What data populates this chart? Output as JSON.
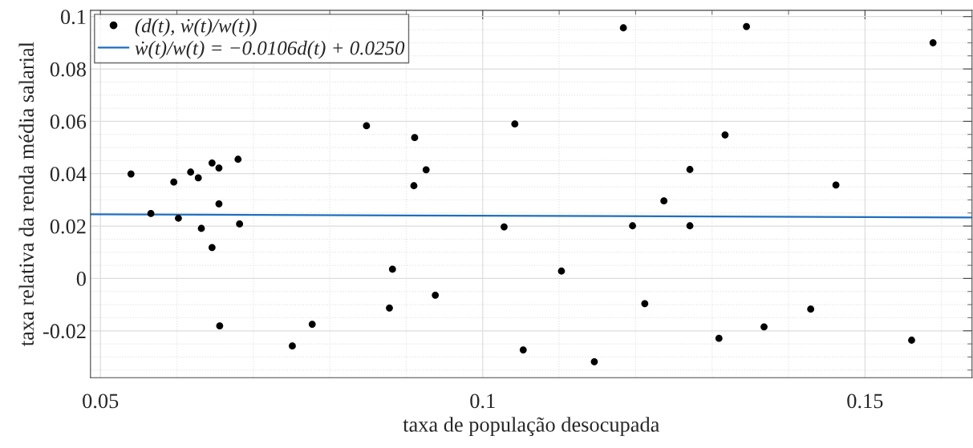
{
  "chart_data": {
    "type": "scatter",
    "xlabel": "taxa de população desocupada",
    "ylabel": "taxa relativa da renda média salarial",
    "xlim": [
      0.0487,
      0.164
    ],
    "ylim": [
      -0.0379,
      0.1024
    ],
    "xticks": [
      0.05,
      0.1,
      0.15
    ],
    "yticks": [
      -0.02,
      0,
      0.02,
      0.04,
      0.06,
      0.08,
      0.1
    ],
    "grid": true,
    "legend": "top left",
    "series": [
      {
        "name": "(d(t), ẇ(t)/w(t))",
        "marker": "circle",
        "color": "#000000",
        "x": [
          0.054,
          0.0566,
          0.0596,
          0.0602,
          0.0618,
          0.0628,
          0.0632,
          0.0646,
          0.0646,
          0.0655,
          0.0655,
          0.0656,
          0.068,
          0.0682,
          0.0751,
          0.0777,
          0.0848,
          0.0911,
          0.0926,
          0.091,
          0.0882,
          0.0878,
          0.0938,
          0.1042,
          0.1028,
          0.1053,
          0.1103,
          0.1146,
          0.1184,
          0.1196,
          0.1212,
          0.1345,
          0.1317,
          0.1271,
          0.1237,
          0.1271,
          0.1309,
          0.1368,
          0.1429,
          0.1462,
          0.1561,
          0.1589
        ],
        "values": [
          0.0399,
          0.0248,
          0.0368,
          0.023,
          0.0406,
          0.0384,
          0.0191,
          0.0441,
          0.0118,
          0.0422,
          0.0285,
          -0.0181,
          0.0455,
          0.0208,
          -0.0258,
          -0.0175,
          0.0583,
          0.0538,
          0.0415,
          0.0354,
          0.0035,
          -0.0113,
          -0.0064,
          0.059,
          0.0197,
          -0.0273,
          0.0028,
          -0.0318,
          0.0957,
          0.0201,
          -0.0096,
          0.0962,
          0.0548,
          0.0416,
          0.0296,
          0.0201,
          -0.0229,
          -0.0185,
          -0.0117,
          0.0357,
          -0.0236,
          0.09
        ]
      },
      {
        "name": "ẇ(t)/w(t) = −0.0106d(t) + 0.0250",
        "type": "line",
        "color": "#1f6fbf",
        "x": [
          0.0487,
          0.164
        ],
        "values": [
          0.0245,
          0.0233
        ]
      }
    ]
  }
}
